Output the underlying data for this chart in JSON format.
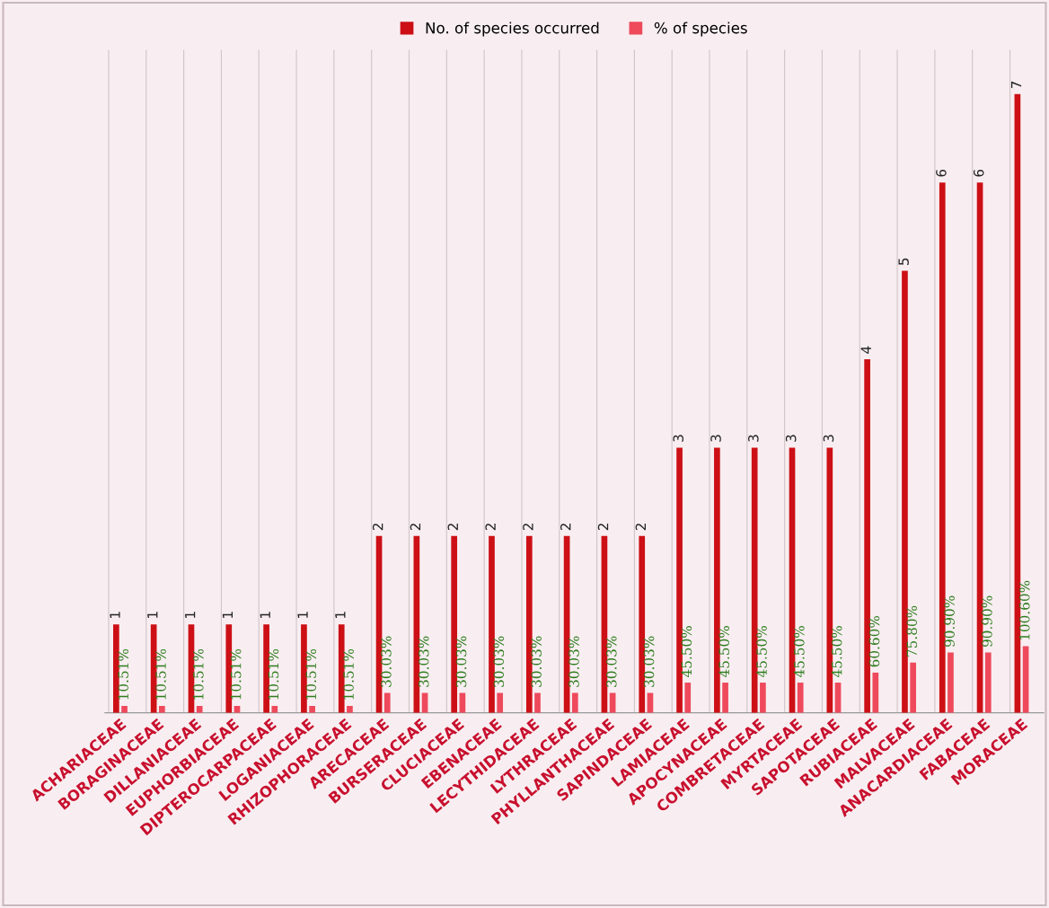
{
  "chart_data": {
    "type": "bar",
    "categories": [
      "ACHARIACEAE",
      "BORAGINACEAE",
      "DILLANIACEAE",
      "EUPHORBIACEAE",
      "DIPTEROCARPACEAE",
      "LOGANIACEAE",
      "RHIZOPHORACEAE",
      "ARECACEAE",
      "BURSERACEAE",
      "CLUCIACEAE",
      "EBENACEAE",
      "LECYTHIDACEAE",
      "LYTHRACEAE",
      "PHYLLANTHACEAE",
      "SAPINDACEAE",
      "LAMIACEAE",
      "APOCYNACEAE",
      "COMBRETACEAE",
      "MYRTACEAE",
      "SAPOTACEAE",
      "RUBIACEAE",
      "MALVACEAE",
      "ANACARDIACEAE",
      "FABACEAE",
      "MORACEAE"
    ],
    "series": [
      {
        "name": "No. of species occurred",
        "color": "#cc1016",
        "values": [
          1,
          1,
          1,
          1,
          1,
          1,
          1,
          2,
          2,
          2,
          2,
          2,
          2,
          2,
          2,
          3,
          3,
          3,
          3,
          3,
          4,
          5,
          6,
          6,
          7
        ],
        "value_labels": [
          "1",
          "1",
          "1",
          "1",
          "1",
          "1",
          "1",
          "2",
          "2",
          "2",
          "2",
          "2",
          "2",
          "2",
          "2",
          "3",
          "3",
          "3",
          "3",
          "3",
          "4",
          "5",
          "6",
          "6",
          "7"
        ]
      },
      {
        "name": "% of species",
        "color": "#ee4a5c",
        "axis": "y2",
        "values": [
          10.51,
          10.51,
          10.51,
          10.51,
          10.51,
          10.51,
          10.51,
          30.03,
          30.03,
          30.03,
          30.03,
          30.03,
          30.03,
          30.03,
          30.03,
          45.5,
          45.5,
          45.5,
          45.5,
          45.5,
          60.6,
          75.8,
          90.9,
          90.9,
          100.6
        ],
        "value_labels": [
          "10.51%",
          "10.51%",
          "10.51%",
          "10.51%",
          "10.51%",
          "10.51%",
          "10.51%",
          "30.03%",
          "30.03%",
          "30.03%",
          "30.03%",
          "30.03%",
          "30.03%",
          "30.03%",
          "30.03%",
          "45.50%",
          "45.50%",
          "45.50%",
          "45.50%",
          "45.50%",
          "60.60%",
          "75.80%",
          "90.90%",
          "90.90%",
          "100.60%"
        ]
      }
    ],
    "ylim": [
      0,
      7.5
    ],
    "y2lim": [
      0,
      1000
    ],
    "tick_labels": "x",
    "grid": "x",
    "legend": "top"
  }
}
